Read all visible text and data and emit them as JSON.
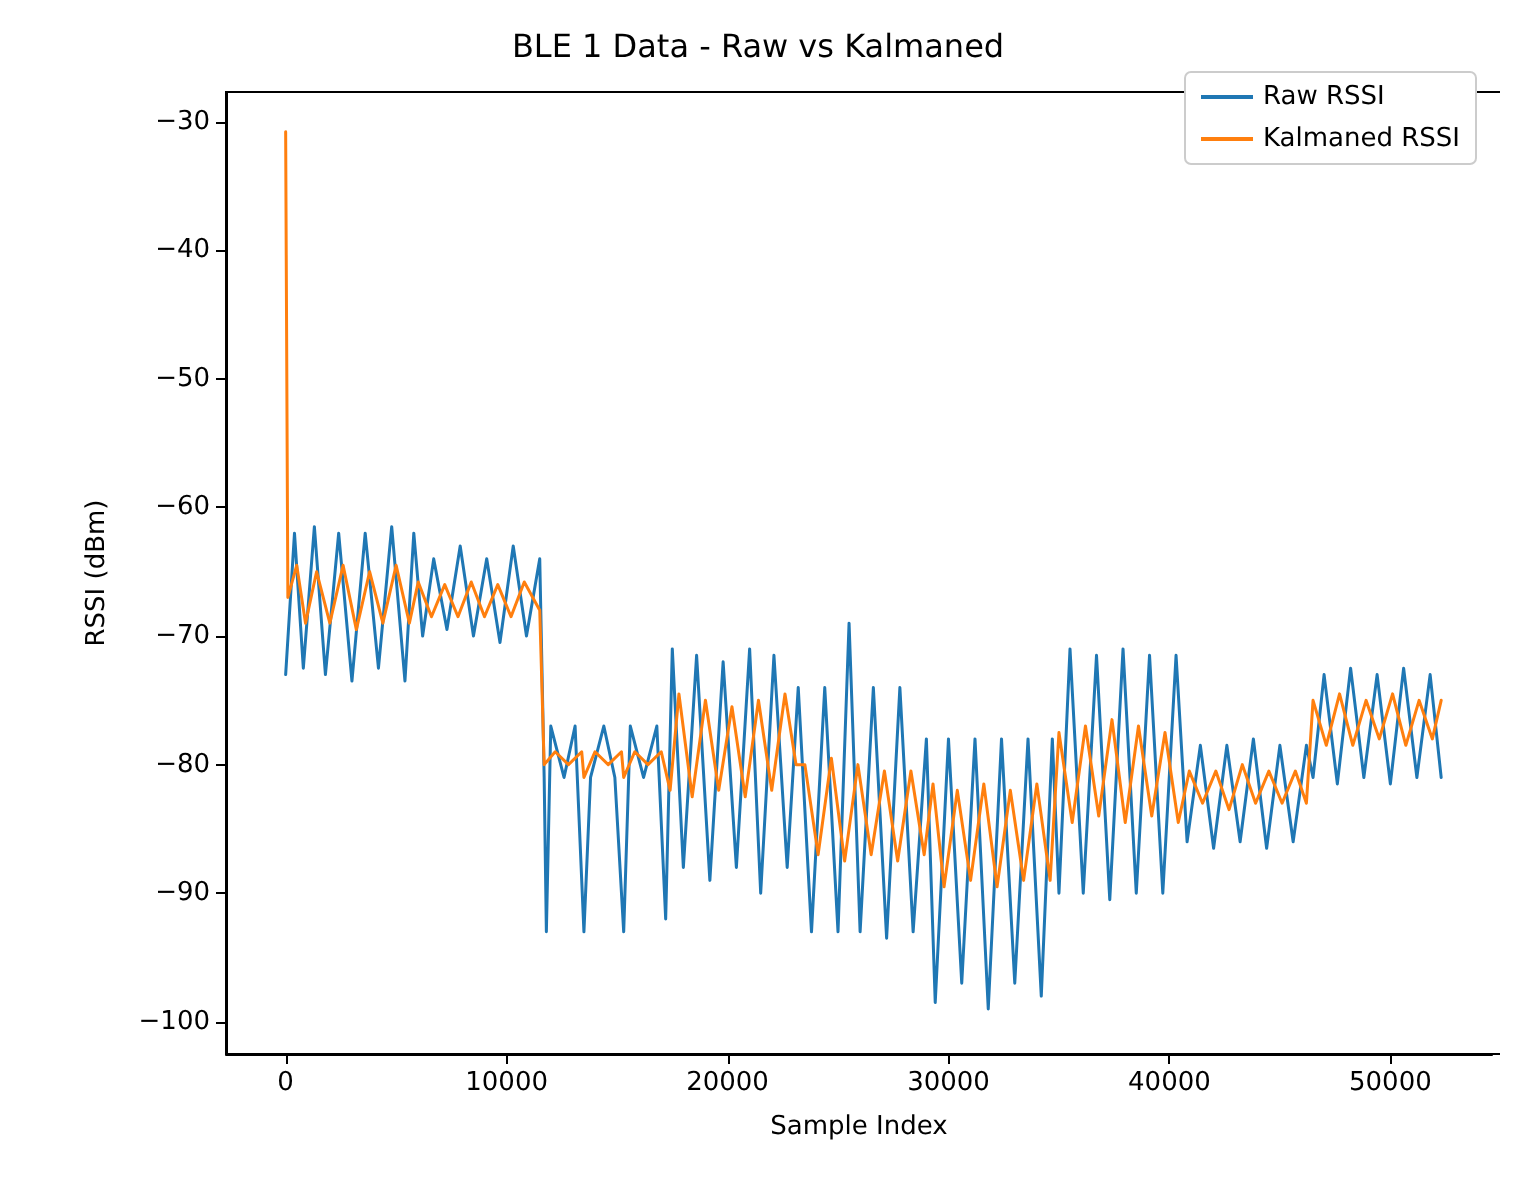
{
  "chart_data": {
    "type": "line",
    "title": "BLE 1 Data - Raw vs Kalmaned",
    "xlabel": "Sample Index",
    "ylabel": "RSSI (dBm)",
    "xlim": [
      -2700,
      54600
    ],
    "ylim": [
      -102.5,
      -27.7
    ],
    "xticks": [
      0,
      10000,
      20000,
      30000,
      40000,
      50000
    ],
    "yticks": [
      -100,
      -90,
      -80,
      -70,
      -60,
      -50,
      -40,
      -30
    ],
    "grid": false,
    "legend": "top right",
    "marker": "none",
    "line_style": "solid",
    "series": [
      {
        "name": "Raw RSSI",
        "color": "#1f77b4",
        "x": [
          0,
          400,
          800,
          1300,
          1800,
          2400,
          3000,
          3600,
          4200,
          4800,
          5400,
          5800,
          6200,
          6700,
          7300,
          7900,
          8500,
          9100,
          9700,
          10300,
          10900,
          11500,
          11700,
          11800,
          12000,
          12600,
          13100,
          13500,
          13800,
          14400,
          14900,
          15300,
          15600,
          16200,
          16800,
          17200,
          17500,
          18000,
          18600,
          19200,
          19800,
          20400,
          21000,
          21500,
          22100,
          22700,
          23200,
          23800,
          24400,
          25000,
          25500,
          26000,
          26600,
          27200,
          27800,
          28400,
          29000,
          29400,
          30000,
          30600,
          31200,
          31800,
          32400,
          33000,
          33600,
          34200,
          34700,
          35000,
          35500,
          36100,
          36700,
          37300,
          37900,
          38500,
          39100,
          39700,
          40300,
          40800,
          41400,
          42000,
          42600,
          43200,
          43800,
          44400,
          45000,
          45600,
          46200,
          46500,
          47000,
          47600,
          48200,
          48800,
          49400,
          50000,
          50600,
          51200,
          51800,
          52300
        ],
        "values": [
          -73,
          -62,
          -72.5,
          -61.5,
          -73,
          -62,
          -73.5,
          -62,
          -72.5,
          -61.5,
          -73.5,
          -62,
          -70,
          -64,
          -69.5,
          -63,
          -70,
          -64,
          -70.5,
          -63,
          -70,
          -64,
          -81,
          -93,
          -77,
          -81,
          -77,
          -93,
          -81,
          -77,
          -81,
          -93,
          -77,
          -81,
          -77,
          -92,
          -71,
          -88,
          -71.5,
          -89,
          -72,
          -88,
          -71,
          -90,
          -71.5,
          -88,
          -74,
          -93,
          -74,
          -93,
          -69,
          -93,
          -74,
          -93.5,
          -74,
          -93,
          -78,
          -98.5,
          -78,
          -97,
          -78,
          -99,
          -78,
          -97,
          -78,
          -98,
          -78,
          -90,
          -71,
          -90,
          -71.5,
          -90.5,
          -71,
          -90,
          -71.5,
          -90,
          -71.5,
          -86,
          -78.5,
          -86.5,
          -78.5,
          -86,
          -78,
          -86.5,
          -78.5,
          -86,
          -78.5,
          -81,
          -73,
          -81.5,
          -72.5,
          -81,
          -73,
          -81.5,
          -72.5,
          -81,
          -73,
          -81
        ]
      },
      {
        "name": "Kalmaned RSSI",
        "color": "#ff7f0e",
        "x": [
          0,
          100,
          500,
          900,
          1400,
          2000,
          2600,
          3200,
          3800,
          4400,
          5000,
          5600,
          6000,
          6600,
          7200,
          7800,
          8400,
          9000,
          9600,
          10200,
          10800,
          11500,
          11700,
          12200,
          12800,
          13400,
          13500,
          14000,
          14600,
          15200,
          15300,
          15800,
          16400,
          17000,
          17400,
          17800,
          18400,
          19000,
          19600,
          20200,
          20800,
          21400,
          22000,
          22600,
          23100,
          23500,
          24100,
          24700,
          25300,
          25900,
          26500,
          27100,
          27700,
          28300,
          28900,
          29300,
          29800,
          30400,
          31000,
          31600,
          32200,
          32800,
          33400,
          34000,
          34600,
          35000,
          35600,
          36200,
          36800,
          37400,
          38000,
          38600,
          39200,
          39800,
          40400,
          40900,
          41500,
          42100,
          42700,
          43300,
          43900,
          44500,
          45100,
          45700,
          46200,
          46500,
          47100,
          47700,
          48300,
          48900,
          49500,
          50100,
          50700,
          51300,
          51900,
          52300
        ],
        "values": [
          -30.8,
          -67,
          -64.5,
          -69,
          -65,
          -69,
          -64.5,
          -69.5,
          -65,
          -69,
          -64.5,
          -69,
          -65.8,
          -68.5,
          -66,
          -68.5,
          -65.8,
          -68.5,
          -66,
          -68.5,
          -65.8,
          -68,
          -80,
          -79,
          -80,
          -79,
          -81,
          -79,
          -80,
          -79,
          -81,
          -79,
          -80,
          -79,
          -82,
          -74.5,
          -82.5,
          -75,
          -82,
          -75.5,
          -82.5,
          -75,
          -82,
          -74.5,
          -80,
          -80,
          -87,
          -79.5,
          -87.5,
          -80,
          -87,
          -80.5,
          -87.5,
          -80.5,
          -87,
          -81.5,
          -89.5,
          -82,
          -89,
          -81.5,
          -89.5,
          -82,
          -89,
          -81.5,
          -89,
          -77.5,
          -84.5,
          -77,
          -84,
          -76.5,
          -84.5,
          -77,
          -84,
          -77.5,
          -84.5,
          -80.5,
          -83,
          -80.5,
          -83.5,
          -80,
          -83,
          -80.5,
          -83,
          -80.5,
          -83,
          -75,
          -78.5,
          -74.5,
          -78.5,
          -75,
          -78,
          -74.5,
          -78.5,
          -75,
          -78,
          -75
        ]
      }
    ]
  }
}
